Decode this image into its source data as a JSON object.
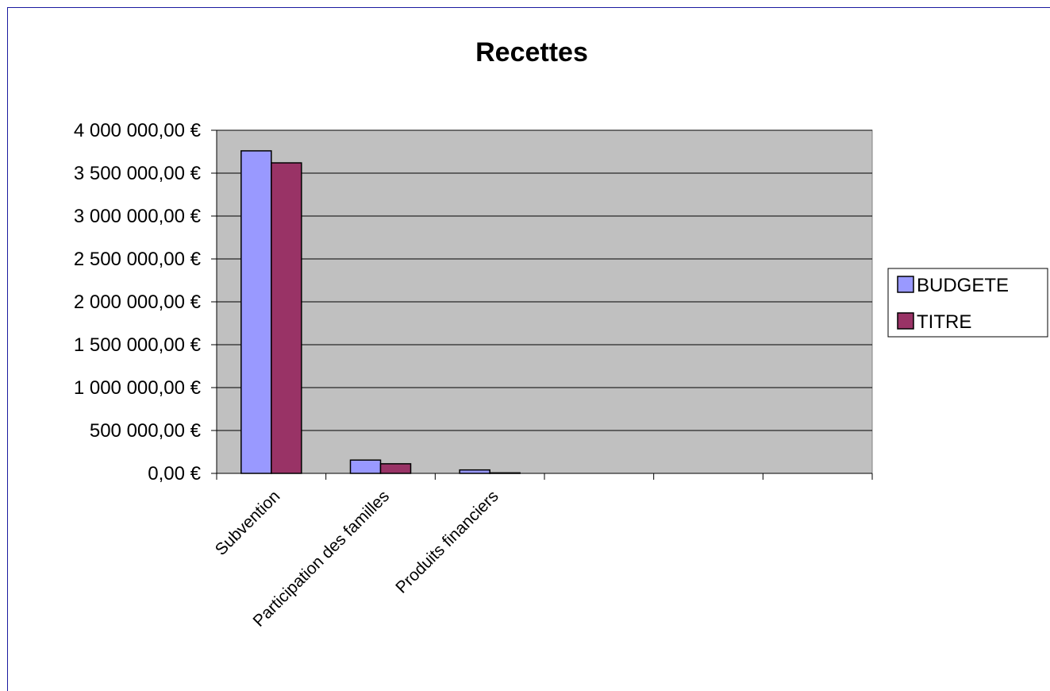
{
  "chart_data": {
    "type": "bar",
    "title": "Recettes",
    "xlabel": "",
    "ylabel": "",
    "categories": [
      "Subvention",
      "Participation des familles",
      "Produits financiers",
      "",
      "",
      ""
    ],
    "series": [
      {
        "name": "BUDGETE",
        "color": "#9999ff",
        "values": [
          3760000,
          155000,
          40000,
          null,
          null,
          null
        ]
      },
      {
        "name": "TITRE",
        "color": "#993366",
        "values": [
          3620000,
          112000,
          6000,
          null,
          null,
          null
        ]
      }
    ],
    "ylim": [
      0,
      4000000
    ],
    "ytick_values": [
      0,
      500000,
      1000000,
      1500000,
      2000000,
      2500000,
      3000000,
      3500000,
      4000000
    ],
    "ytick_labels": [
      "0,00 €",
      "500 000,00 €",
      "1 000 000,00 €",
      "1 500 000,00 €",
      "2 000 000,00 €",
      "2 500 000,00 €",
      "3 000 000,00 €",
      "3 500 000,00 €",
      "4 000 000,00 €"
    ],
    "grid": true,
    "plot_background": "#c0c0c0",
    "legend_position": "right"
  }
}
